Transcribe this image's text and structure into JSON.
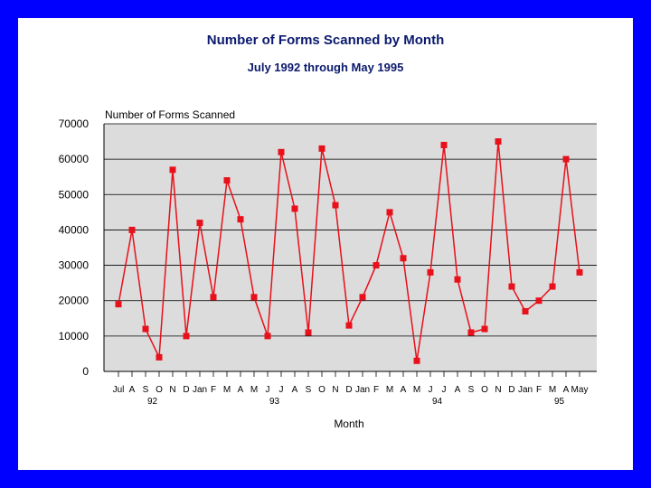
{
  "chart_data": {
    "type": "line",
    "title": "Number of Forms Scanned by Month",
    "subtitle": "July 1992 through May 1995",
    "ylabel": "Number of Forms Scanned",
    "xlabel": "Month",
    "ylim": [
      0,
      70000
    ],
    "yticks": [
      "0",
      "10000",
      "20000",
      "30000",
      "40000",
      "50000",
      "60000",
      "70000"
    ],
    "grid": true,
    "categories": [
      "Jul",
      "A",
      "S",
      "O",
      "N",
      "D",
      "Jan",
      "F",
      "M",
      "A",
      "M",
      "J",
      "J",
      "A",
      "S",
      "O",
      "N",
      "D",
      "Jan",
      "F",
      "M",
      "A",
      "M",
      "J",
      "J",
      "A",
      "S",
      "O",
      "N",
      "D",
      "Jan",
      "F",
      "M",
      "A",
      "May"
    ],
    "year_labels": [
      {
        "index": 2.5,
        "label": "92"
      },
      {
        "index": 11.5,
        "label": "93"
      },
      {
        "index": 23.5,
        "label": "94"
      },
      {
        "index": 32.5,
        "label": "95"
      }
    ],
    "series": [
      {
        "values": [
          19000,
          40000,
          12000,
          4000,
          57000,
          10000,
          42000,
          21000,
          54000,
          43000,
          21000,
          10000,
          62000,
          46000,
          11000,
          63000,
          47000,
          13000,
          21000,
          30000,
          45000,
          32000,
          3000,
          28000,
          64000,
          26000,
          11000,
          12000,
          65000,
          24000,
          17000,
          20000,
          24000,
          60000,
          28000
        ],
        "color": "#e8101a"
      }
    ],
    "colors": {
      "frame": "#0000ff",
      "plot_bg": "#dcdcdc",
      "title": "#0b1a6e",
      "series": "#e8101a"
    }
  }
}
